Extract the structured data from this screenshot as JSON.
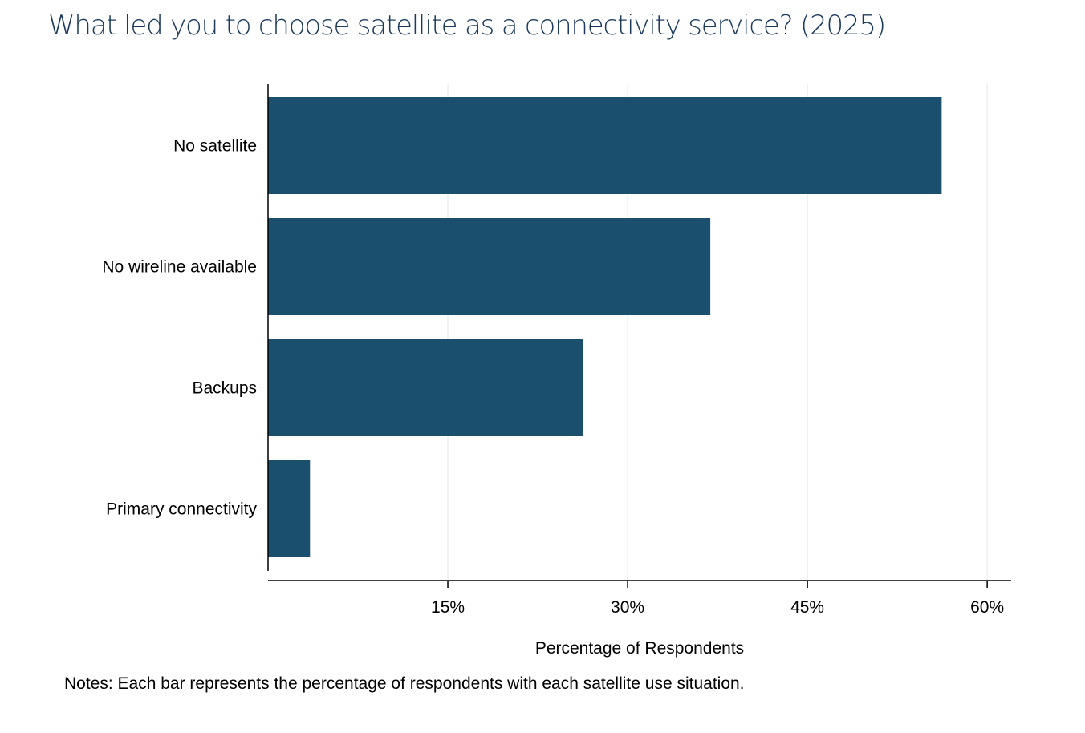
{
  "chart_data": {
    "type": "bar",
    "orientation": "horizontal",
    "title": "What led you to choose satellite as a connectivity service? (2025)",
    "xlabel": "Percentage of Respondents",
    "ylabel": "",
    "categories": [
      "No satellite",
      "No wireline available",
      "Backups",
      "Primary connectivity"
    ],
    "values": [
      56.2,
      36.9,
      26.3,
      3.5
    ],
    "unit": "%",
    "xlim": [
      0,
      62
    ],
    "xticks": [
      15,
      30,
      45,
      60
    ],
    "xtick_labels": [
      "15%",
      "30%",
      "45%",
      "60%"
    ],
    "grid": "vertical",
    "legend": "none",
    "bar_color": "#1a506e",
    "notes": "Notes: Each bar represents the percentage of respondents with each satellite use situation."
  }
}
